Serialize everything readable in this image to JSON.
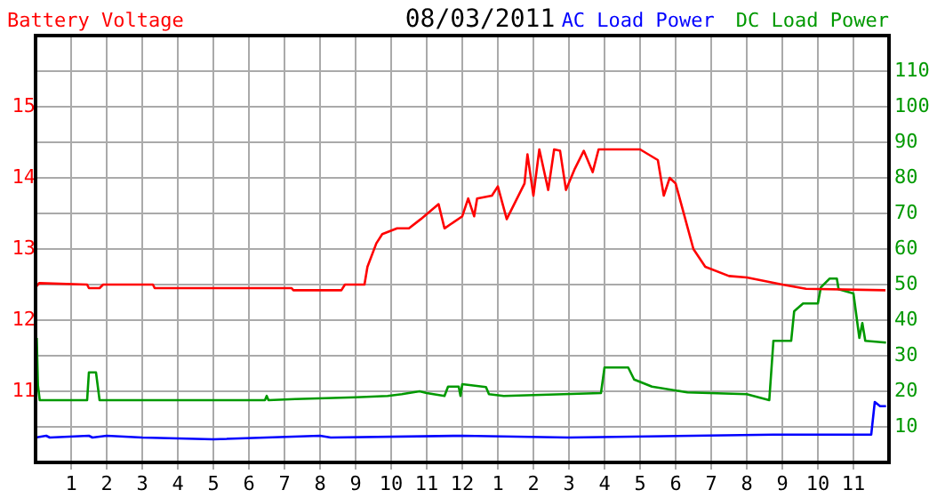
{
  "chart_data": {
    "type": "line",
    "title": "08/03/2011",
    "xlim": [
      "2011-08-03T00:00",
      "2011-08-04T00:00"
    ],
    "xticks": [
      {
        "value": "2011-08-03T01:00",
        "label": "1"
      },
      {
        "value": "2011-08-03T02:00",
        "label": "2"
      },
      {
        "value": "2011-08-03T03:00",
        "label": "3"
      },
      {
        "value": "2011-08-03T04:00",
        "label": "4"
      },
      {
        "value": "2011-08-03T05:00",
        "label": "5"
      },
      {
        "value": "2011-08-03T06:00",
        "label": "6"
      },
      {
        "value": "2011-08-03T07:00",
        "label": "7"
      },
      {
        "value": "2011-08-03T08:00",
        "label": "8"
      },
      {
        "value": "2011-08-03T09:00",
        "label": "9"
      },
      {
        "value": "2011-08-03T10:00",
        "label": "10"
      },
      {
        "value": "2011-08-03T11:00",
        "label": "11"
      },
      {
        "value": "2011-08-03T12:00",
        "label": "12"
      },
      {
        "value": "2011-08-03T13:00",
        "label": "1"
      },
      {
        "value": "2011-08-03T14:00",
        "label": "2"
      },
      {
        "value": "2011-08-03T15:00",
        "label": "3"
      },
      {
        "value": "2011-08-03T16:00",
        "label": "4"
      },
      {
        "value": "2011-08-03T17:00",
        "label": "5"
      },
      {
        "value": "2011-08-03T18:00",
        "label": "6"
      },
      {
        "value": "2011-08-03T19:00",
        "label": "7"
      },
      {
        "value": "2011-08-03T20:00",
        "label": "8"
      },
      {
        "value": "2011-08-03T21:00",
        "label": "9"
      },
      {
        "value": "2011-08-03T22:00",
        "label": "10"
      },
      {
        "value": "2011-08-03T23:00",
        "label": "11"
      }
    ],
    "ylim": [
      10,
      16
    ],
    "yticks": [
      {
        "value": 10.5,
        "label": null
      },
      11,
      {
        "value": 11.5,
        "label": null
      },
      12,
      {
        "value": 12.5,
        "label": null
      },
      13,
      {
        "value": 13.5,
        "label": null
      },
      14,
      {
        "value": 14.5,
        "label": null
      },
      15,
      {
        "value": 15.5,
        "label": null
      }
    ],
    "y2lim": [
      0,
      120
    ],
    "y2ticks": [
      10,
      20,
      30,
      40,
      50,
      60,
      70,
      80,
      90,
      100,
      110
    ],
    "grid": true,
    "legend": "top",
    "marker": "none",
    "line_style": "solid",
    "series": [
      {
        "name": "Battery Voltage",
        "color": "#ff0000",
        "x": [
          "2011-08-03T00:00",
          "2011-08-03T00:06",
          "2011-08-03T01:27",
          "2011-08-03T01:30",
          "2011-08-03T01:48",
          "2011-08-03T01:54",
          "2011-08-03T03:18",
          "2011-08-03T03:21",
          "2011-08-03T07:12",
          "2011-08-03T07:15",
          "2011-08-03T08:36",
          "2011-08-03T08:42",
          "2011-08-03T09:15",
          "2011-08-03T09:20",
          "2011-08-03T09:35",
          "2011-08-03T09:45",
          "2011-08-03T10:10",
          "2011-08-03T10:30",
          "2011-08-03T10:50",
          "2011-08-03T11:20",
          "2011-08-03T11:30",
          "2011-08-03T12:00",
          "2011-08-03T12:10",
          "2011-08-03T12:20",
          "2011-08-03T12:25",
          "2011-08-03T12:50",
          "2011-08-03T13:00",
          "2011-08-03T13:15",
          "2011-08-03T13:30",
          "2011-08-03T13:45",
          "2011-08-03T13:50",
          "2011-08-03T14:00",
          "2011-08-03T14:10",
          "2011-08-03T14:25",
          "2011-08-03T14:35",
          "2011-08-03T14:45",
          "2011-08-03T14:55",
          "2011-08-03T15:10",
          "2011-08-03T15:25",
          "2011-08-03T15:40",
          "2011-08-03T15:50",
          "2011-08-03T17:00",
          "2011-08-03T17:30",
          "2011-08-03T17:40",
          "2011-08-03T17:50",
          "2011-08-03T18:00",
          "2011-08-03T18:15",
          "2011-08-03T18:30",
          "2011-08-03T18:50",
          "2011-08-03T19:30",
          "2011-08-03T20:00",
          "2011-08-03T21:00",
          "2011-08-03T21:40",
          "2011-08-03T23:54"
        ],
        "values": [
          12.46,
          12.52,
          12.5,
          12.45,
          12.45,
          12.5,
          12.5,
          12.45,
          12.45,
          12.42,
          12.42,
          12.5,
          12.5,
          12.75,
          13.08,
          13.21,
          13.29,
          13.29,
          13.42,
          13.63,
          13.29,
          13.46,
          13.71,
          13.46,
          13.71,
          13.75,
          13.88,
          13.42,
          13.67,
          13.92,
          14.33,
          13.75,
          14.4,
          13.83,
          14.4,
          14.38,
          13.83,
          14.13,
          14.38,
          14.08,
          14.4,
          14.4,
          14.25,
          13.75,
          14.0,
          13.92,
          13.46,
          13.0,
          12.75,
          12.62,
          12.6,
          12.5,
          12.44,
          12.42
        ]
      },
      {
        "name": "AC Load Power",
        "color": "#0000ff",
        "axis": "y2",
        "x": [
          "2011-08-03T00:00",
          "2011-08-03T00:18",
          "2011-08-03T00:24",
          "2011-08-03T01:30",
          "2011-08-03T01:36",
          "2011-08-03T02:00",
          "2011-08-03T03:00",
          "2011-08-03T05:00",
          "2011-08-03T08:00",
          "2011-08-03T08:18",
          "2011-08-03T12:00",
          "2011-08-03T15:00",
          "2011-08-03T20:45",
          "2011-08-03T23:30",
          "2011-08-03T23:36",
          "2011-08-03T23:45",
          "2011-08-03T23:55"
        ],
        "values": [
          7,
          7.5,
          7,
          7.5,
          7,
          7.5,
          7,
          6.5,
          7.5,
          7,
          7.5,
          7,
          7.8,
          7.8,
          17,
          15.8,
          15.8
        ]
      },
      {
        "name": "DC Load Power",
        "color": "#009900",
        "axis": "y2",
        "x": [
          "2011-08-03T00:02",
          "2011-08-03T00:04",
          "2011-08-03T00:07",
          "2011-08-03T01:27",
          "2011-08-03T01:30",
          "2011-08-03T01:42",
          "2011-08-03T01:48",
          "2011-08-03T06:27",
          "2011-08-03T06:30",
          "2011-08-03T06:33",
          "2011-08-03T07:18",
          "2011-08-03T09:00",
          "2011-08-03T09:54",
          "2011-08-03T10:18",
          "2011-08-03T10:48",
          "2011-08-03T11:00",
          "2011-08-03T11:30",
          "2011-08-03T11:36",
          "2011-08-03T11:54",
          "2011-08-03T11:57",
          "2011-08-03T12:00",
          "2011-08-03T12:40",
          "2011-08-03T12:45",
          "2011-08-03T13:10",
          "2011-08-03T15:54",
          "2011-08-03T16:00",
          "2011-08-03T16:40",
          "2011-08-03T16:50",
          "2011-08-03T17:20",
          "2011-08-03T18:20",
          "2011-08-03T20:00",
          "2011-08-03T20:38",
          "2011-08-03T20:45",
          "2011-08-03T21:15",
          "2011-08-03T21:20",
          "2011-08-03T21:35",
          "2011-08-03T22:00",
          "2011-08-03T22:05",
          "2011-08-03T22:20",
          "2011-08-03T22:32",
          "2011-08-03T22:35",
          "2011-08-03T23:00",
          "2011-08-03T23:10",
          "2011-08-03T23:15",
          "2011-08-03T23:20",
          "2011-08-03T23:55"
        ],
        "values": [
          35,
          21.7,
          17.5,
          17.5,
          25.3,
          25.3,
          17.5,
          17.5,
          18.7,
          17.5,
          17.8,
          18.3,
          18.7,
          19.2,
          20,
          19.5,
          18.7,
          21.3,
          21.3,
          18.7,
          22,
          21.2,
          19.2,
          18.7,
          19.5,
          26.7,
          26.7,
          23.3,
          21.3,
          19.7,
          19.2,
          17.5,
          34.2,
          34.2,
          42.5,
          44.7,
          44.7,
          49.2,
          51.7,
          51.7,
          48.7,
          47.5,
          35,
          39.2,
          34.2,
          33.7
        ]
      }
    ]
  }
}
